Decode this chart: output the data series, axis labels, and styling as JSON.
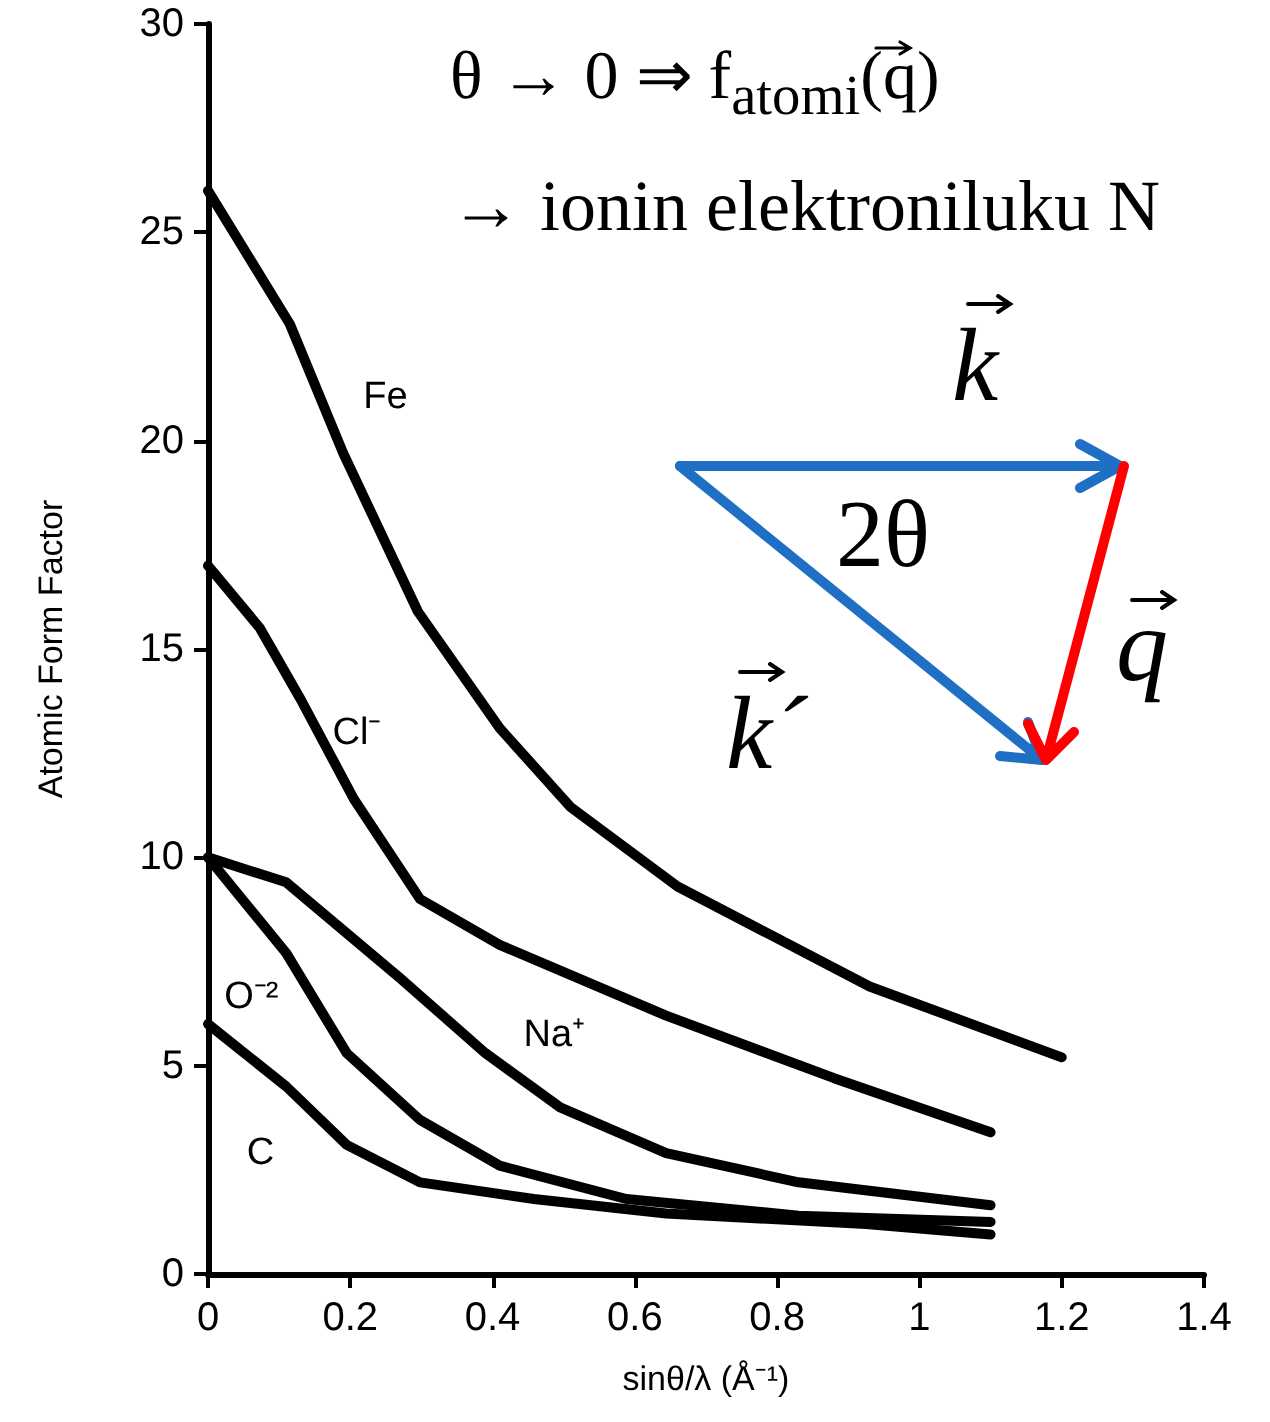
{
  "chart_data": {
    "type": "line",
    "xlabel": "sinθ/λ (Å⁻¹)",
    "ylabel": "Atomic Form Factor",
    "xlim": [
      0,
      1.4
    ],
    "xticks": [
      0,
      0.2,
      0.4,
      0.6,
      0.8,
      1,
      1.2,
      1.4
    ],
    "ylim": [
      0,
      30
    ],
    "yticks": [
      0,
      5,
      10,
      15,
      20,
      25,
      30
    ],
    "grid": false,
    "legend": false,
    "marker": "none",
    "line_style": "solid",
    "series": [
      {
        "name": "Fe",
        "color": "#000000",
        "x": [
          0,
          0.115,
          0.19,
          0.295,
          0.41,
          0.51,
          0.66,
          0.93,
          1.2
        ],
        "values": [
          26,
          22.8,
          19.7,
          15.9,
          13.1,
          11.2,
          9.3,
          6.9,
          5.2
        ]
      },
      {
        "name": "Cl⁻",
        "color": "#000000",
        "x": [
          0,
          0.073,
          0.13,
          0.205,
          0.298,
          0.41,
          0.644,
          0.88,
          1.1
        ],
        "values": [
          17,
          15.5,
          13.8,
          11.4,
          9,
          7.9,
          6.2,
          4.7,
          3.4
        ]
      },
      {
        "name": "Na⁺",
        "color": "#000000",
        "x": [
          0,
          0.11,
          0.27,
          0.39,
          0.495,
          0.644,
          0.83,
          1.1
        ],
        "values": [
          10,
          9.4,
          7.1,
          5.3,
          4,
          2.9,
          2.2,
          1.65
        ]
      },
      {
        "name": "O⁻²",
        "color": "#000000",
        "x": [
          0,
          0.11,
          0.195,
          0.298,
          0.41,
          0.588,
          0.83,
          1.1
        ],
        "values": [
          10,
          7.7,
          5.3,
          3.7,
          2.6,
          1.8,
          1.4,
          1.25
        ]
      },
      {
        "name": "C",
        "color": "#000000",
        "x": [
          0,
          0.11,
          0.195,
          0.298,
          0.458,
          0.644,
          0.925,
          1.1
        ],
        "values": [
          6,
          4.5,
          3.1,
          2.2,
          1.8,
          1.45,
          1.2,
          0.95
        ]
      }
    ],
    "annotations": [
      "θ → 0 ⇒ f$_{atomi}$(q)",
      "→ ionin elektroniluku N",
      "k",
      "2θ",
      "q",
      "k´"
    ]
  }
}
